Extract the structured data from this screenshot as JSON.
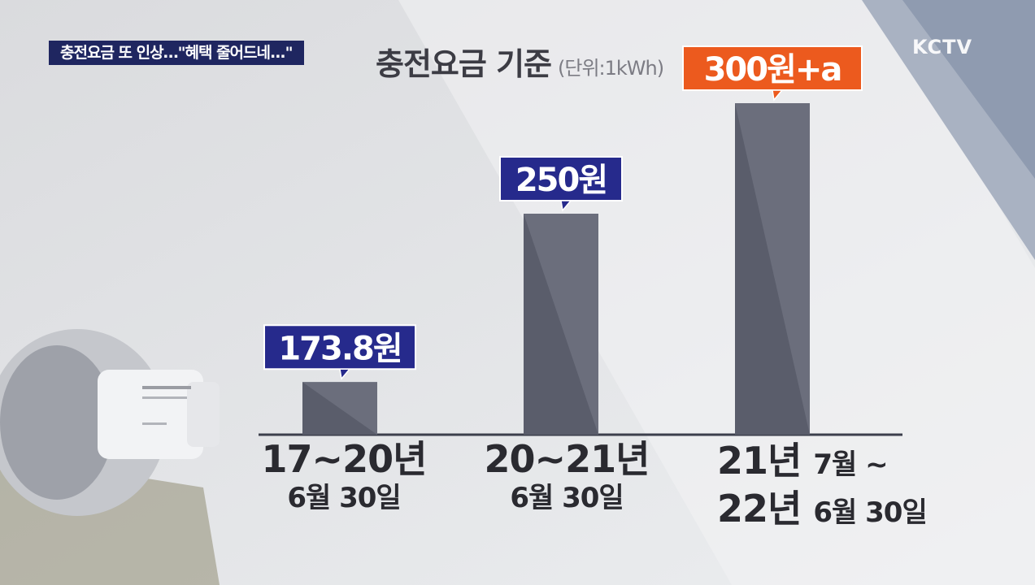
{
  "headline": "충전요금 또 인상…\"혜택 줄어드네...\"",
  "logo": "KCTV",
  "title": "충전요금 기준",
  "unit": "(단위:1kWh)",
  "colors": {
    "bar": "#5a5d6b",
    "callout_blue": "#262a8c",
    "callout_orange": "#ec5a1e",
    "headline_bg": "#1f2660"
  },
  "chart_data": {
    "type": "bar",
    "title": "충전요금 기준",
    "unit": "(단위:1kWh)",
    "categories": [
      "17~20년 6월 30일",
      "20~21년 6월 30일",
      "21년 7월 ~ 22년 6월 30일"
    ],
    "values": [
      173.8,
      250,
      300
    ],
    "value_labels": [
      "173.8원",
      "250원",
      "300원+a"
    ],
    "category_lines": [
      {
        "l1": "17~20년",
        "l2": "6월 30일"
      },
      {
        "l1": "20~21년",
        "l2": "6월 30일"
      },
      {
        "l1a": "21년",
        "l1b": "7월 ~",
        "l2a": "22년",
        "l2b": "6월 30일"
      }
    ],
    "grid": false
  }
}
